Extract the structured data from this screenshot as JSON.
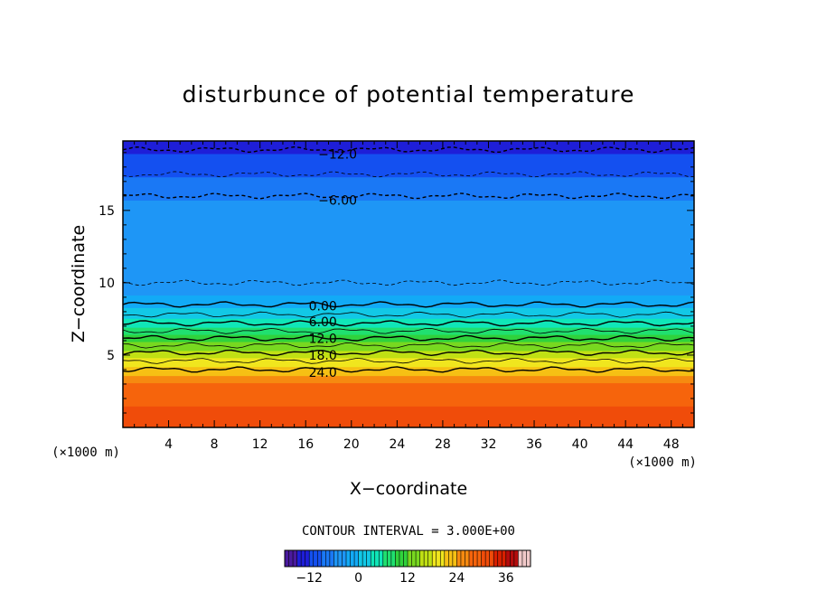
{
  "chart_data": {
    "type": "heatmap",
    "title": "disturbunce of potential temperature",
    "xlabel": "X−coordinate",
    "ylabel": "Z−coordinate",
    "x_unit_left": "(×1000 m)",
    "x_unit_right": "(×1000 m)",
    "xlim": [
      0,
      50
    ],
    "ylim": [
      0,
      19.8
    ],
    "x_ticks": [
      4,
      8,
      12,
      16,
      20,
      24,
      28,
      32,
      36,
      40,
      44,
      48
    ],
    "x_tick_labels": [
      "4",
      "8",
      "12",
      "16",
      "20",
      "24",
      "28",
      "32",
      "36",
      "40",
      "44",
      "48"
    ],
    "y_ticks": [
      5,
      10,
      15
    ],
    "y_tick_labels": [
      "5",
      "10",
      "15"
    ],
    "contour_interval_text": "CONTOUR INTERVAL = 3.000E+00",
    "colorbar": {
      "min": -18,
      "max": 42,
      "tick_values": [
        -12,
        0,
        12,
        24,
        36
      ],
      "tick_labels": [
        "−12",
        "0",
        "12",
        "24",
        "36"
      ]
    },
    "profile": {
      "z": [
        0,
        1,
        2,
        3,
        3.5,
        4,
        5,
        6,
        7,
        8,
        8.5,
        9,
        10,
        12,
        14,
        15.5,
        16,
        17,
        17.5,
        18.5,
        19.2,
        19.8
      ],
      "value": [
        33,
        33,
        32,
        30,
        27,
        24,
        19,
        13,
        7,
        2,
        0,
        -2,
        -3,
        -3.5,
        -4,
        -5,
        -6,
        -8,
        -9,
        -11,
        -12,
        -14
      ]
    },
    "contour_labels": [
      {
        "text": "−12.0",
        "x": 18.8,
        "z": 18.9
      },
      {
        "text": "−6.00",
        "x": 18.8,
        "z": 15.7
      },
      {
        "text": "0.00",
        "x": 17.5,
        "z": 8.4
      },
      {
        "text": "6.00",
        "x": 17.5,
        "z": 7.3
      },
      {
        "text": "12.0",
        "x": 17.5,
        "z": 6.15
      },
      {
        "text": "18.0",
        "x": 17.5,
        "z": 5.0
      },
      {
        "text": "24.0",
        "x": 17.5,
        "z": 3.8
      }
    ]
  },
  "colors": {
    "palette": [
      "#4a1a9e",
      "#1e1ed8",
      "#1450f0",
      "#1a78f5",
      "#1e96f6",
      "#12aaf6",
      "#12c8e6",
      "#10e6b8",
      "#20e070",
      "#30d23c",
      "#78d820",
      "#c0e014",
      "#f0e61e",
      "#f6c014",
      "#f68a10",
      "#f6640c",
      "#f04c0a",
      "#d82000",
      "#b40c0c",
      "#f0c8c8"
    ]
  }
}
